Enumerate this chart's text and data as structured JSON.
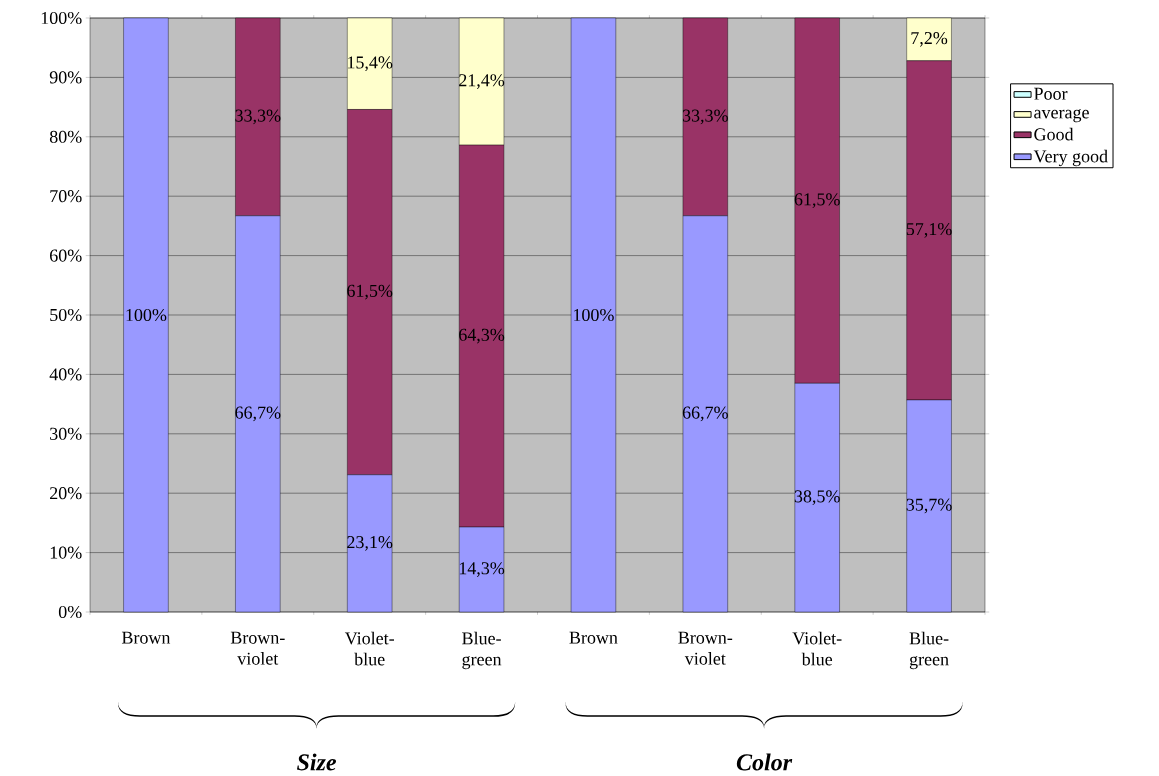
{
  "chart_data": {
    "type": "bar",
    "stacked": true,
    "categories": [
      "Brown",
      "Brown-violet",
      "Violet-blue",
      "Blue-green",
      "Brown",
      "Brown-violet",
      "Violet-blue",
      "Blue-green"
    ],
    "series": [
      {
        "name": "Very good",
        "color": "#9999ff",
        "values": [
          100,
          66.7,
          23.1,
          14.3,
          100,
          66.7,
          38.5,
          35.7
        ],
        "value_labels": [
          "100%",
          "66,7%",
          "23,1%",
          "14,3%",
          "100%",
          "66,7%",
          "38,5%",
          "35,7%"
        ]
      },
      {
        "name": "Good",
        "color": "#993366",
        "values": [
          0,
          33.3,
          61.5,
          64.3,
          0,
          33.3,
          61.5,
          57.1
        ],
        "value_labels": [
          null,
          "33,3%",
          "61,5%",
          "64,3%",
          null,
          "33,3%",
          "61,5%",
          "57,1%"
        ]
      },
      {
        "name": "average",
        "color": "#ffffcc",
        "values": [
          0,
          0,
          15.4,
          21.4,
          0,
          0,
          0,
          7.2
        ],
        "value_labels": [
          null,
          null,
          "15,4%",
          "21,4%",
          null,
          null,
          null,
          "7,2%"
        ]
      },
      {
        "name": "Poor",
        "color": "#ccffff",
        "values": [
          0,
          0,
          0,
          0,
          0,
          0,
          0,
          0
        ]
      }
    ],
    "ylim": [
      0,
      100
    ],
    "yticks": [
      {
        "value": 0,
        "label": "0%"
      },
      {
        "value": 10,
        "label": "10%"
      },
      {
        "value": 20,
        "label": "20%"
      },
      {
        "value": 30,
        "label": "30%"
      },
      {
        "value": 40,
        "label": "40%"
      },
      {
        "value": 50,
        "label": "50%"
      },
      {
        "value": 60,
        "label": "60%"
      },
      {
        "value": 70,
        "label": "70%"
      },
      {
        "value": 80,
        "label": "80%"
      },
      {
        "value": 90,
        "label": "90%"
      },
      {
        "value": 100,
        "label": "100%"
      }
    ],
    "grid": "y",
    "legend": "right",
    "annotations": [
      "Size",
      "Color"
    ]
  }
}
